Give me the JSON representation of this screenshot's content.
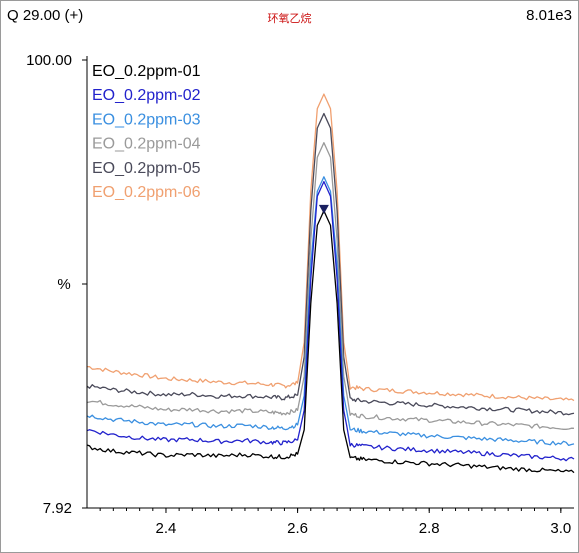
{
  "header": {
    "trace": "Q 29.00 (+)",
    "compound": "环氧乙烷",
    "intensity": "8.01e3"
  },
  "chart_data": {
    "type": "line",
    "title": "环氧乙烷",
    "xlabel": "",
    "ylabel": "%",
    "xlim": [
      2.28,
      3.02
    ],
    "ylim": [
      7.92,
      100.0
    ],
    "x_ticks": [
      {
        "value": 2.4,
        "label": "2.4"
      },
      {
        "value": 2.6,
        "label": "2.6"
      },
      {
        "value": 2.8,
        "label": "2.8"
      },
      {
        "value": 3.0,
        "label": "3.0"
      }
    ],
    "y_ticks": [
      {
        "value": 100.0,
        "label": "100.00"
      },
      {
        "value": 53.96,
        "label": "%"
      },
      {
        "value": 7.92,
        "label": "7.92"
      }
    ],
    "grid": false,
    "legend_position": "top-left",
    "peak": {
      "x": 2.64,
      "marker_color": "#1a2060"
    },
    "series": [
      {
        "name": "EO_0.2ppm-01",
        "color": "#000000",
        "x": [
          2.28,
          2.32,
          2.36,
          2.4,
          2.44,
          2.48,
          2.52,
          2.56,
          2.58,
          2.6,
          2.61,
          2.62,
          2.63,
          2.64,
          2.65,
          2.66,
          2.67,
          2.68,
          2.7,
          2.74,
          2.78,
          2.82,
          2.86,
          2.9,
          2.94,
          2.98,
          3.02
        ],
        "y": [
          20.5,
          19.6,
          19.2,
          18.7,
          18.9,
          18.6,
          18.9,
          18.5,
          18.4,
          19.0,
          24,
          50,
          66,
          69,
          66,
          50,
          24,
          18.2,
          17.9,
          17.5,
          17.2,
          16.9,
          16.6,
          16.2,
          15.9,
          15.6,
          15.2
        ]
      },
      {
        "name": "EO_0.2ppm-02",
        "color": "#2222cc",
        "x": [
          2.28,
          2.32,
          2.36,
          2.4,
          2.44,
          2.48,
          2.52,
          2.56,
          2.58,
          2.6,
          2.61,
          2.62,
          2.63,
          2.64,
          2.65,
          2.66,
          2.67,
          2.68,
          2.7,
          2.74,
          2.78,
          2.82,
          2.86,
          2.9,
          2.94,
          2.98,
          3.02
        ],
        "y": [
          24.0,
          23.0,
          22.3,
          21.9,
          22.0,
          21.6,
          21.8,
          21.4,
          21.3,
          21.9,
          28,
          55,
          72,
          75,
          72,
          55,
          28,
          21.0,
          20.6,
          20.2,
          19.9,
          19.6,
          19.3,
          19.0,
          18.6,
          18.3,
          18.0
        ]
      },
      {
        "name": "EO_0.2ppm-03",
        "color": "#3a8fe0",
        "x": [
          2.28,
          2.32,
          2.36,
          2.4,
          2.44,
          2.48,
          2.52,
          2.56,
          2.58,
          2.6,
          2.61,
          2.62,
          2.63,
          2.64,
          2.65,
          2.66,
          2.67,
          2.68,
          2.7,
          2.74,
          2.78,
          2.82,
          2.86,
          2.9,
          2.94,
          2.98,
          3.02
        ],
        "y": [
          27.0,
          26.1,
          25.6,
          25.0,
          25.1,
          24.7,
          24.9,
          24.5,
          24.3,
          25.0,
          31,
          58,
          73,
          76,
          73,
          58,
          31,
          24.1,
          23.7,
          23.3,
          22.9,
          22.6,
          22.3,
          22.0,
          21.7,
          21.4,
          21.1
        ]
      },
      {
        "name": "EO_0.2ppm-04",
        "color": "#9a9a9a",
        "x": [
          2.28,
          2.32,
          2.36,
          2.4,
          2.44,
          2.48,
          2.52,
          2.56,
          2.58,
          2.6,
          2.61,
          2.62,
          2.63,
          2.64,
          2.65,
          2.66,
          2.67,
          2.68,
          2.7,
          2.74,
          2.78,
          2.82,
          2.86,
          2.9,
          2.94,
          2.98,
          3.02
        ],
        "y": [
          30.0,
          29.2,
          28.7,
          28.1,
          28.2,
          27.8,
          27.9,
          27.6,
          27.4,
          28.0,
          35,
          63,
          80,
          83,
          80,
          63,
          35,
          27.2,
          26.8,
          26.4,
          26.1,
          25.8,
          25.5,
          25.2,
          24.9,
          24.6,
          24.3
        ]
      },
      {
        "name": "EO_0.2ppm-05",
        "color": "#4a4a5a",
        "x": [
          2.28,
          2.32,
          2.36,
          2.4,
          2.44,
          2.48,
          2.52,
          2.56,
          2.58,
          2.6,
          2.61,
          2.62,
          2.63,
          2.64,
          2.65,
          2.66,
          2.67,
          2.68,
          2.7,
          2.74,
          2.78,
          2.82,
          2.86,
          2.9,
          2.94,
          2.98,
          3.02
        ],
        "y": [
          33.0,
          32.2,
          31.7,
          31.2,
          31.3,
          30.9,
          31.0,
          30.7,
          30.5,
          31.1,
          39,
          69,
          86,
          89,
          86,
          69,
          39,
          30.3,
          29.9,
          29.5,
          29.2,
          28.9,
          28.6,
          28.3,
          28.0,
          27.7,
          27.4
        ]
      },
      {
        "name": "EO_0.2ppm-06",
        "color": "#f0a070",
        "x": [
          2.28,
          2.32,
          2.36,
          2.4,
          2.44,
          2.48,
          2.52,
          2.56,
          2.58,
          2.6,
          2.61,
          2.62,
          2.63,
          2.64,
          2.65,
          2.66,
          2.67,
          2.68,
          2.7,
          2.74,
          2.78,
          2.82,
          2.86,
          2.9,
          2.94,
          2.98,
          3.02
        ],
        "y": [
          37.0,
          36.0,
          35.3,
          34.5,
          34.2,
          33.8,
          33.6,
          33.3,
          33.0,
          33.6,
          42,
          73,
          90,
          93,
          90,
          73,
          42,
          32.8,
          32.4,
          32.1,
          31.8,
          31.5,
          31.2,
          30.9,
          30.6,
          30.3,
          30.0
        ]
      }
    ]
  }
}
